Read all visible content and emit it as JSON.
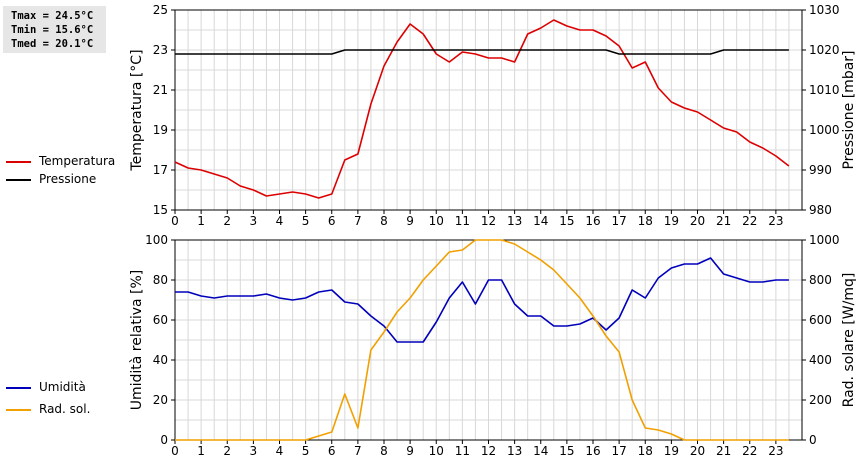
{
  "stats": {
    "tmax": "Tmax = 24.5°C",
    "tmin": "Tmin = 15.6°C",
    "tmed": "Tmed = 20.1°C"
  },
  "legend_top": [
    {
      "label": "Temperatura",
      "color": "#dd0000"
    },
    {
      "label": "Pressione",
      "color": "#000000"
    }
  ],
  "legend_bottom": [
    {
      "label": "Umidità",
      "color": "#0000bb"
    },
    {
      "label": "Rad. sol.",
      "color": "#f0a000"
    }
  ],
  "chart_data": [
    {
      "type": "line",
      "xlabel": "",
      "ylabel": "Temperatura [°C]",
      "y2label": "Pressione [mbar]",
      "xlim": [
        0,
        24
      ],
      "ylim": [
        15,
        25
      ],
      "y2lim": [
        980,
        1030
      ],
      "x_ticks": [
        "0",
        "1",
        "2",
        "3",
        "4",
        "5",
        "6",
        "7",
        "8",
        "9",
        "10",
        "11",
        "12",
        "13",
        "14",
        "15",
        "16",
        "17",
        "18",
        "19",
        "20",
        "21",
        "22",
        "23"
      ],
      "y_ticks": [
        "15",
        "17",
        "19",
        "21",
        "23",
        "25"
      ],
      "y2_ticks": [
        "980",
        "990",
        "1000",
        "1010",
        "1020",
        "1030"
      ],
      "grid": true,
      "x": [
        0,
        0.5,
        1,
        1.5,
        2,
        2.5,
        3,
        3.5,
        4,
        4.5,
        5,
        5.5,
        6,
        6.5,
        7,
        7.5,
        8,
        8.5,
        9,
        9.5,
        10,
        10.5,
        11,
        11.5,
        12,
        12.5,
        13,
        13.5,
        14,
        14.5,
        15,
        15.5,
        16,
        16.5,
        17,
        17.5,
        18,
        18.5,
        19,
        19.5,
        20,
        20.5,
        21,
        21.5,
        22,
        22.5,
        23,
        23.5
      ],
      "series": [
        {
          "name": "Temperatura",
          "axis": "left",
          "color": "#dd0000",
          "values": [
            17.4,
            17.1,
            17.0,
            16.8,
            16.6,
            16.2,
            16.0,
            15.7,
            15.8,
            15.9,
            15.8,
            15.6,
            15.8,
            17.5,
            17.8,
            20.3,
            22.2,
            23.4,
            24.3,
            23.8,
            22.8,
            22.4,
            22.9,
            22.8,
            22.6,
            22.6,
            22.4,
            23.8,
            24.1,
            24.5,
            24.2,
            24.0,
            24.0,
            23.7,
            23.2,
            22.1,
            22.4,
            21.1,
            20.4,
            20.1,
            19.9,
            19.5,
            19.1,
            18.9,
            18.4,
            18.1,
            17.7,
            17.2
          ]
        },
        {
          "name": "Pressione",
          "axis": "right",
          "color": "#000000",
          "values": [
            1019,
            1019,
            1019,
            1019,
            1019,
            1019,
            1019,
            1019,
            1019,
            1019,
            1019,
            1019,
            1019,
            1020,
            1020,
            1020,
            1020,
            1020,
            1020,
            1020,
            1020,
            1020,
            1020,
            1020,
            1020,
            1020,
            1020,
            1020,
            1020,
            1020,
            1020,
            1020,
            1020,
            1020,
            1019,
            1019,
            1019,
            1019,
            1019,
            1019,
            1019,
            1019,
            1020,
            1020,
            1020,
            1020,
            1020,
            1020
          ]
        }
      ]
    },
    {
      "type": "line",
      "xlabel": "",
      "ylabel": "Umidità relativa [%]",
      "y2label": "Rad. solare [W/mq]",
      "xlim": [
        0,
        24
      ],
      "ylim": [
        0,
        100
      ],
      "y2lim": [
        0,
        1000
      ],
      "x_ticks": [
        "0",
        "1",
        "2",
        "3",
        "4",
        "5",
        "6",
        "7",
        "8",
        "9",
        "10",
        "11",
        "12",
        "13",
        "14",
        "15",
        "16",
        "17",
        "18",
        "19",
        "20",
        "21",
        "22",
        "23"
      ],
      "y_ticks": [
        "0",
        "20",
        "40",
        "60",
        "80",
        "100"
      ],
      "y2_ticks": [
        "0",
        "200",
        "400",
        "600",
        "800",
        "1000"
      ],
      "grid": true,
      "x": [
        0,
        0.5,
        1,
        1.5,
        2,
        2.5,
        3,
        3.5,
        4,
        4.5,
        5,
        5.5,
        6,
        6.5,
        7,
        7.5,
        8,
        8.5,
        9,
        9.5,
        10,
        10.5,
        11,
        11.5,
        12,
        12.5,
        13,
        13.5,
        14,
        14.5,
        15,
        15.5,
        16,
        16.5,
        17,
        17.5,
        18,
        18.5,
        19,
        19.5,
        20,
        20.5,
        21,
        21.5,
        22,
        22.5,
        23,
        23.5
      ],
      "series": [
        {
          "name": "Umidità",
          "axis": "left",
          "color": "#0000bb",
          "values": [
            74,
            74,
            72,
            71,
            72,
            72,
            72,
            73,
            71,
            70,
            71,
            74,
            75,
            69,
            68,
            62,
            57,
            49,
            49,
            49,
            59,
            71,
            79,
            68,
            80,
            80,
            68,
            62,
            62,
            57,
            57,
            58,
            61,
            55,
            61,
            75,
            71,
            81,
            86,
            88,
            88,
            91,
            83,
            81,
            79,
            79,
            80,
            80
          ]
        },
        {
          "name": "Rad. sol.",
          "axis": "right",
          "color": "#f0a000",
          "values": [
            0,
            0,
            0,
            0,
            0,
            0,
            0,
            0,
            0,
            0,
            0,
            20,
            40,
            230,
            60,
            450,
            540,
            640,
            710,
            800,
            870,
            940,
            950,
            1000,
            1000,
            1000,
            980,
            940,
            900,
            850,
            780,
            710,
            620,
            520,
            440,
            200,
            60,
            50,
            30,
            0,
            0,
            0,
            0,
            0,
            0,
            0,
            0,
            0
          ]
        }
      ]
    }
  ]
}
